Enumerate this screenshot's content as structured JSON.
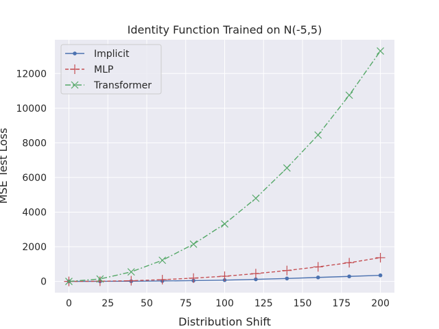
{
  "chart_data": {
    "type": "line",
    "title": "Identity Function Trained on N(-5,5)",
    "xlabel": "Distribution Shift",
    "ylabel": "MSE Test Loss",
    "xlim": [
      -9,
      209
    ],
    "ylim": [
      -650,
      13950
    ],
    "xticks": [
      0,
      25,
      50,
      75,
      100,
      125,
      150,
      175,
      200
    ],
    "yticks": [
      0,
      2000,
      4000,
      6000,
      8000,
      10000,
      12000
    ],
    "grid": true,
    "legend_position": "top-left",
    "x": [
      0,
      20,
      40,
      60,
      80,
      100,
      120,
      140,
      160,
      180,
      200
    ],
    "series": [
      {
        "name": "Implicit",
        "color": "#4c72b0",
        "line_style": "solid",
        "marker": "dot",
        "values": [
          0,
          5,
          12,
          25,
          45,
          75,
          120,
          170,
          230,
          290,
          350
        ]
      },
      {
        "name": "MLP",
        "color": "#c44e52",
        "line_style": "dashed",
        "marker": "plus",
        "values": [
          0,
          10,
          40,
          100,
          190,
          300,
          450,
          630,
          840,
          1080,
          1370
        ]
      },
      {
        "name": "Transformer",
        "color": "#55a868",
        "line_style": "dashdot",
        "marker": "x",
        "values": [
          0,
          140,
          550,
          1220,
          2150,
          3320,
          4800,
          6550,
          8450,
          10750,
          13300
        ]
      }
    ]
  }
}
